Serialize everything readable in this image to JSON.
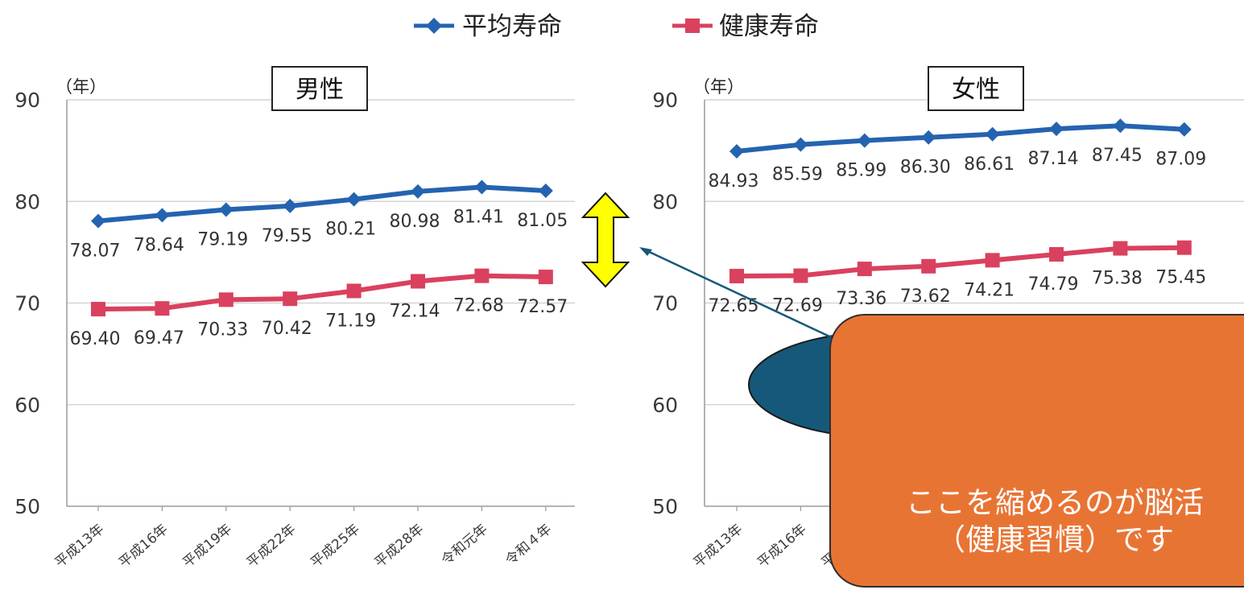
{
  "chart_data": {
    "type": "line",
    "legend": {
      "placement": "top-center",
      "entries": [
        {
          "label": "平均寿命",
          "color": "#2463b0",
          "marker": "diamond"
        },
        {
          "label": "健康寿命",
          "color": "#d9415e",
          "marker": "square"
        }
      ]
    },
    "y_unit": "（年）",
    "ylim": [
      50,
      90
    ],
    "yticks": [
      "90",
      "80",
      "70",
      "60",
      "50"
    ],
    "grid": true,
    "categories": [
      "平成13年",
      "平成16年",
      "平成19年",
      "平成22年",
      "平成25年",
      "平成28年",
      "令和元年",
      "令和４年"
    ],
    "panels": [
      {
        "title": "男性",
        "series": [
          {
            "name": "平均寿命",
            "values": [
              78.07,
              78.64,
              79.19,
              79.55,
              80.21,
              80.98,
              81.41,
              81.05
            ],
            "labels": [
              "78.07",
              "78.64",
              "79.19",
              "79.55",
              "80.21",
              "80.98",
              "81.41",
              "81.05"
            ]
          },
          {
            "name": "健康寿命",
            "values": [
              69.4,
              69.47,
              70.33,
              70.42,
              71.19,
              72.14,
              72.68,
              72.57
            ],
            "labels": [
              "69.40",
              "69.47",
              "70.33",
              "70.42",
              "71.19",
              "72.14",
              "72.68",
              "72.57"
            ]
          }
        ]
      },
      {
        "title": "女性",
        "series": [
          {
            "name": "平均寿命",
            "values": [
              84.93,
              85.59,
              85.99,
              86.3,
              86.61,
              87.14,
              87.45,
              87.09
            ],
            "labels": [
              "84.93",
              "85.59",
              "85.99",
              "86.30",
              "86.61",
              "87.14",
              "87.45",
              "87.09"
            ]
          },
          {
            "name": "健康寿命",
            "values": [
              72.65,
              72.69,
              73.36,
              73.62,
              74.21,
              74.79,
              75.38,
              75.45
            ],
            "labels": [
              "72.65",
              "72.69",
              "73.36",
              "73.62",
              "74.21",
              "74.79",
              "75.38",
              "75.45"
            ]
          }
        ]
      }
    ]
  },
  "annotation": {
    "callout_text": "ここを縮めるのが脳活\n（健康習慣）です",
    "callout_color": "#e87434",
    "bubble_color": "#16587a",
    "arrow_color": "#ffff00"
  }
}
